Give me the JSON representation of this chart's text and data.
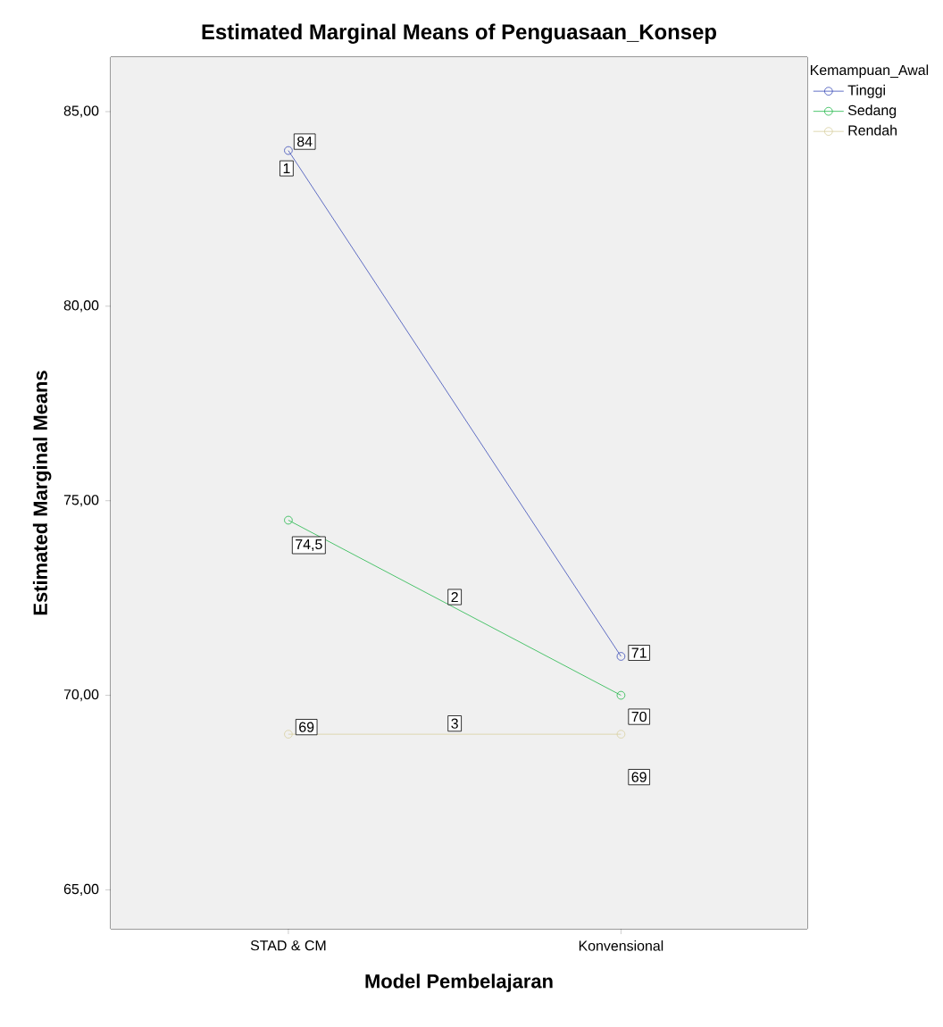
{
  "chart_data": {
    "type": "line",
    "title": "Estimated Marginal Means of Penguasaan_Konsep",
    "xlabel": "Model  Pembelajaran",
    "ylabel": "Estimated Marginal Means",
    "legend_title": "Kemampuan_Awal",
    "categories": [
      "STAD & CM",
      "Konvensional"
    ],
    "series": [
      {
        "name": "Tinggi",
        "color": "#3b4cb8",
        "values": [
          84,
          71
        ],
        "value_labels": [
          "84",
          "71"
        ]
      },
      {
        "name": "Sedang",
        "color": "#22b84a",
        "values": [
          74.5,
          70
        ],
        "value_labels": [
          "74,5",
          "70"
        ]
      },
      {
        "name": "Rendah",
        "color": "#d8cfa0",
        "values": [
          69,
          69
        ],
        "value_labels": [
          "69",
          "69"
        ]
      }
    ],
    "ylim": [
      64,
      86.4
    ],
    "yticks": [
      {
        "value": 65,
        "label": "65,00"
      },
      {
        "value": 70,
        "label": "70,00"
      },
      {
        "value": 75,
        "label": "75,00"
      },
      {
        "value": 80,
        "label": "80,00"
      },
      {
        "value": 85,
        "label": "85,00"
      }
    ],
    "annotations": [
      "1",
      "2",
      "3"
    ],
    "marker": "circle",
    "legend": "top right"
  }
}
